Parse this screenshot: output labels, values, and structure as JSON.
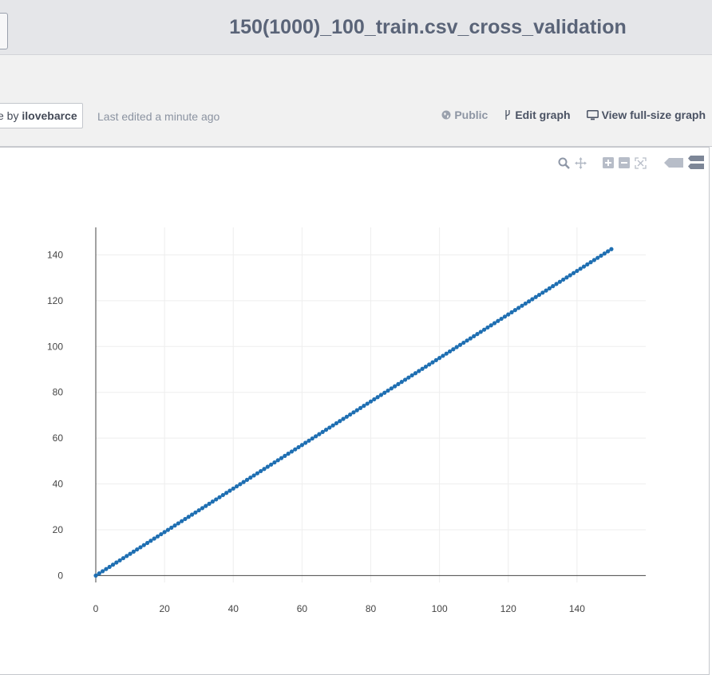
{
  "header": {
    "title": "150(1000)_100_train.csv_cross_validation"
  },
  "info": {
    "owner_prefix": "e by ",
    "owner_name": "ilovebarce",
    "last_edited": "Last edited a minute ago"
  },
  "actions": {
    "public_label": "Public",
    "edit_label": "Edit graph",
    "fullsize_label": "View full-size graph"
  },
  "colors": {
    "series": "#1f6fb2",
    "grid": "#eeeeee",
    "axis": "#444444"
  },
  "modebar": {
    "icons": [
      "zoom-icon",
      "pan-icon",
      "zoom-in-icon",
      "zoom-out-icon",
      "autoscale-icon",
      "hover-closest-icon",
      "hover-compare-icon"
    ]
  },
  "chart_data": {
    "type": "scatter",
    "mode": "lines+markers",
    "x_start": 0,
    "x_end": 150,
    "x_step": 1,
    "y_over_x": 0.95,
    "xlim": [
      0,
      160
    ],
    "ylim": [
      -3,
      152
    ],
    "x_ticks": [
      0,
      20,
      40,
      60,
      80,
      100,
      120,
      140
    ],
    "y_ticks": [
      0,
      20,
      40,
      60,
      80,
      100,
      120,
      140
    ],
    "grid": true,
    "title": "",
    "xlabel": "",
    "ylabel": ""
  }
}
